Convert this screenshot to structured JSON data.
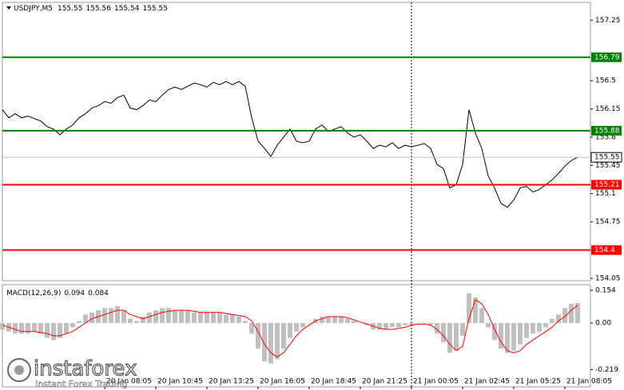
{
  "chart_data": [
    {
      "type": "line",
      "title": "USDJPY,M5",
      "ohlc": [
        155.55,
        155.56,
        155.54,
        155.55
      ],
      "color": "#000000",
      "values": [
        156.14,
        156.04,
        156.09,
        156.04,
        156.06,
        156.03,
        156.0,
        155.93,
        155.9,
        155.83,
        155.9,
        155.95,
        156.04,
        156.09,
        156.16,
        156.19,
        156.24,
        156.22,
        156.29,
        156.32,
        156.16,
        156.14,
        156.19,
        156.26,
        156.24,
        156.32,
        156.39,
        156.42,
        156.39,
        156.43,
        156.47,
        156.45,
        156.42,
        156.48,
        156.45,
        156.49,
        156.45,
        156.49,
        156.43,
        156.04,
        155.75,
        155.66,
        155.56,
        155.7,
        155.8,
        155.9,
        155.75,
        155.73,
        155.75,
        155.9,
        155.95,
        155.87,
        155.9,
        155.93,
        155.85,
        155.8,
        155.83,
        155.75,
        155.66,
        155.7,
        155.68,
        155.73,
        155.66,
        155.7,
        155.68,
        155.7,
        155.72,
        155.66,
        155.46,
        155.41,
        155.17,
        155.21,
        155.46,
        156.14,
        155.85,
        155.66,
        155.32,
        155.17,
        154.98,
        154.93,
        155.02,
        155.17,
        155.19,
        155.12,
        155.15,
        155.21,
        155.27,
        155.35,
        155.44,
        155.51,
        155.55
      ],
      "xlim": [
        0,
        92
      ],
      "ylim": [
        154.02,
        157.47
      ],
      "yticks": [
        154.05,
        154.75,
        155.1,
        155.45,
        155.8,
        156.15,
        156.5,
        157.25
      ],
      "levels": [
        {
          "value": 156.79,
          "color": "#008000"
        },
        {
          "value": 155.88,
          "color": "#008000"
        },
        {
          "value": 155.21,
          "color": "#ff0000"
        },
        {
          "value": 154.4,
          "color": "#ff0000"
        }
      ],
      "last": 155.55,
      "separators": [
        64
      ]
    },
    {
      "type": "macd",
      "title": "MACD(12,26,9)",
      "macd_value": 0.094,
      "signal_value": 0.084,
      "color": "#c0c0c0",
      "signal_color": "#ff0000",
      "values": [
        -0.03,
        -0.04,
        -0.05,
        -0.05,
        -0.05,
        -0.04,
        -0.05,
        -0.07,
        -0.08,
        -0.07,
        -0.05,
        -0.02,
        0.01,
        0.04,
        0.05,
        0.06,
        0.07,
        0.07,
        0.08,
        0.06,
        0.02,
        0.01,
        0.03,
        0.05,
        0.06,
        0.07,
        0.07,
        0.06,
        0.06,
        0.06,
        0.05,
        0.05,
        0.05,
        0.05,
        0.05,
        0.04,
        0.04,
        0.03,
        0.01,
        -0.05,
        -0.12,
        -0.18,
        -0.19,
        -0.17,
        -0.12,
        -0.07,
        -0.04,
        -0.02,
        0.0,
        0.02,
        0.03,
        0.03,
        0.03,
        0.03,
        0.02,
        0.01,
        0.0,
        -0.01,
        -0.03,
        -0.03,
        -0.03,
        -0.02,
        -0.02,
        -0.01,
        -0.01,
        0.0,
        0.0,
        -0.01,
        -0.05,
        -0.09,
        -0.14,
        -0.13,
        -0.06,
        0.14,
        0.12,
        0.07,
        -0.02,
        -0.08,
        -0.12,
        -0.14,
        -0.13,
        -0.1,
        -0.07,
        -0.05,
        -0.04,
        -0.02,
        0.02,
        0.04,
        0.07,
        0.09,
        0.094
      ],
      "signal": [
        -0.01,
        -0.02,
        -0.03,
        -0.04,
        -0.04,
        -0.04,
        -0.045,
        -0.05,
        -0.06,
        -0.06,
        -0.05,
        -0.04,
        -0.02,
        0.0,
        0.02,
        0.03,
        0.04,
        0.05,
        0.06,
        0.06,
        0.04,
        0.03,
        0.02,
        0.03,
        0.04,
        0.05,
        0.055,
        0.06,
        0.06,
        0.06,
        0.055,
        0.05,
        0.05,
        0.05,
        0.05,
        0.045,
        0.04,
        0.035,
        0.03,
        0.01,
        -0.04,
        -0.1,
        -0.14,
        -0.16,
        -0.14,
        -0.1,
        -0.06,
        -0.03,
        -0.01,
        0.01,
        0.02,
        0.03,
        0.03,
        0.03,
        0.025,
        0.015,
        0.005,
        -0.005,
        -0.015,
        -0.025,
        -0.03,
        -0.03,
        -0.025,
        -0.02,
        -0.01,
        -0.005,
        -0.005,
        -0.01,
        -0.03,
        -0.06,
        -0.1,
        -0.13,
        -0.11,
        0.02,
        0.11,
        0.09,
        0.04,
        -0.03,
        -0.09,
        -0.13,
        -0.14,
        -0.13,
        -0.1,
        -0.08,
        -0.06,
        -0.04,
        -0.02,
        0.01,
        0.03,
        0.06,
        0.084
      ],
      "xlim": [
        0,
        92
      ],
      "ylim": [
        -0.3,
        0.18
      ],
      "yticks": [
        -0.219,
        {
          "value": 0,
          "label": "0.00"
        },
        0.154
      ],
      "xticks": [
        {
          "value": 16,
          "label": "20 Jan 08:05"
        },
        {
          "value": 24,
          "label": "20 Jan 10:45"
        },
        {
          "value": 32,
          "label": "20 Jan 13:25"
        },
        {
          "value": 40,
          "label": "20 Jan 16:05"
        },
        {
          "value": 48,
          "label": "20 Jan 18:45"
        },
        {
          "value": 56,
          "label": "20 Jan 21:25"
        },
        {
          "value": 64,
          "label": "21 Jan 00:05"
        },
        {
          "value": 72,
          "label": "21 Jan 02:45"
        },
        {
          "value": 80,
          "label": "21 Jan 05:25"
        },
        {
          "value": 88,
          "label": "21 Jan 08:05"
        }
      ]
    }
  ],
  "watermark": {
    "brand": "instaforex",
    "tagline": "Instant Forex Trading"
  }
}
